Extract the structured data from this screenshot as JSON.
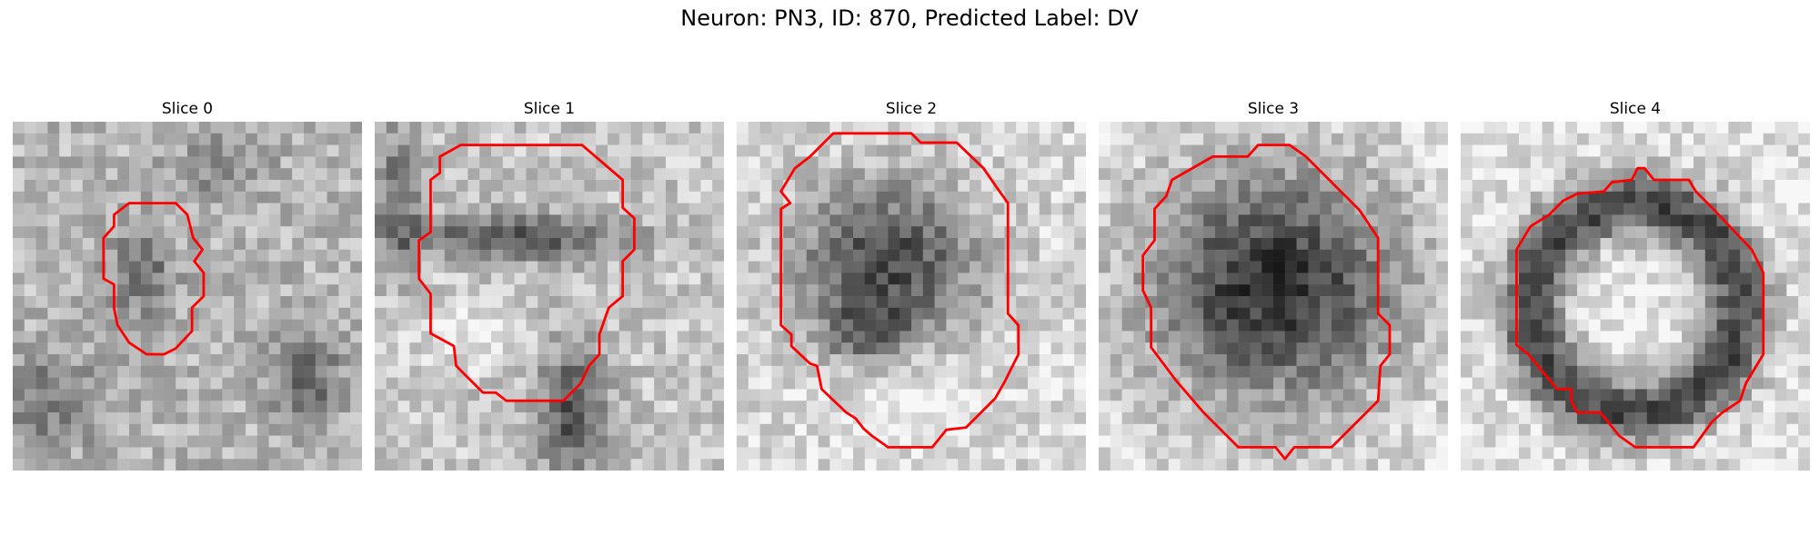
{
  "figure": {
    "title": "Neuron: PN3, ID: 870, Predicted Label: DV"
  },
  "panels": [
    {
      "title": "Slice 0"
    },
    {
      "title": "Slice 1"
    },
    {
      "title": "Slice 2"
    },
    {
      "title": "Slice 3"
    },
    {
      "title": "Slice 4"
    }
  ],
  "style": {
    "contour_color": "#ff0000",
    "colormap": "grayscale"
  }
}
